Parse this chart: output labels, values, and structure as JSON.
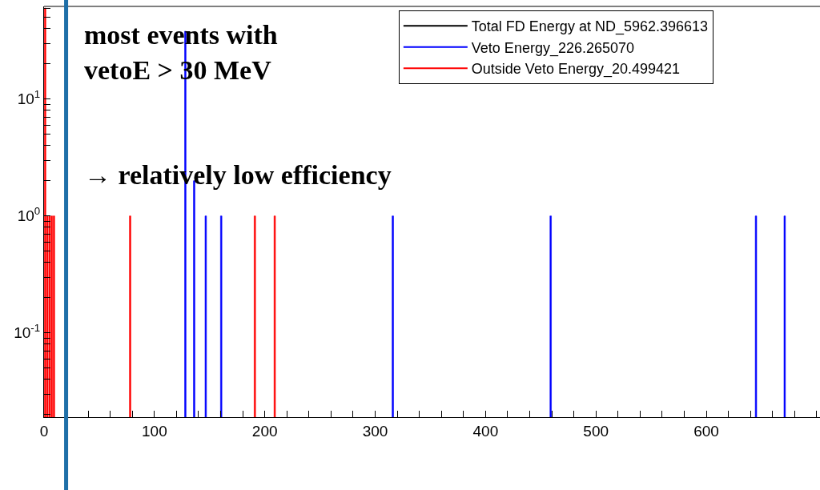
{
  "chart_data": {
    "type": "bar",
    "log": "y",
    "grid": false,
    "legend": "top right",
    "annotations": [
      "most events with\nvetoE > 30 MeV",
      "→ relatively low efficiency"
    ],
    "xlim": [
      0,
      703
    ],
    "xticks": [
      0,
      {
        "value": 20,
        "label": null
      },
      {
        "value": 40,
        "label": null
      },
      {
        "value": 60,
        "label": null
      },
      {
        "value": 80,
        "label": null
      },
      100,
      {
        "value": 120,
        "label": null
      },
      {
        "value": 140,
        "label": null
      },
      {
        "value": 160,
        "label": null
      },
      {
        "value": 180,
        "label": null
      },
      200,
      {
        "value": 220,
        "label": null
      },
      {
        "value": 240,
        "label": null
      },
      {
        "value": 260,
        "label": null
      },
      {
        "value": 280,
        "label": null
      },
      300,
      {
        "value": 320,
        "label": null
      },
      {
        "value": 340,
        "label": null
      },
      {
        "value": 360,
        "label": null
      },
      {
        "value": 380,
        "label": null
      },
      400,
      {
        "value": 420,
        "label": null
      },
      {
        "value": 440,
        "label": null
      },
      {
        "value": 460,
        "label": null
      },
      {
        "value": 480,
        "label": null
      },
      500,
      {
        "value": 520,
        "label": null
      },
      {
        "value": 540,
        "label": null
      },
      {
        "value": 560,
        "label": null
      },
      {
        "value": 580,
        "label": null
      },
      600,
      {
        "value": 620,
        "label": null
      },
      {
        "value": 640,
        "label": null
      },
      {
        "value": 660,
        "label": null
      },
      {
        "value": 680,
        "label": null
      },
      {
        "value": 700,
        "label": null
      }
    ],
    "ylim": [
      0.019,
      62
    ],
    "yticks": [
      {
        "value": 0.02,
        "label": null
      },
      {
        "value": 0.03,
        "label": null
      },
      {
        "value": 0.04,
        "label": null
      },
      {
        "value": 0.05,
        "label": null
      },
      {
        "value": 0.06,
        "label": null
      },
      {
        "value": 0.07,
        "label": null
      },
      {
        "value": 0.08,
        "label": null
      },
      {
        "value": 0.09,
        "label": null
      },
      {
        "value": 0.1,
        "label": "10$^{-1}$"
      },
      {
        "value": 0.2,
        "label": null
      },
      {
        "value": 0.3,
        "label": null
      },
      {
        "value": 0.4,
        "label": null
      },
      {
        "value": 0.5,
        "label": null
      },
      {
        "value": 0.6,
        "label": null
      },
      {
        "value": 0.7,
        "label": null
      },
      {
        "value": 0.8,
        "label": null
      },
      {
        "value": 0.9,
        "label": null
      },
      {
        "value": 1,
        "label": "10$^{0}$"
      },
      {
        "value": 2,
        "label": null
      },
      {
        "value": 3,
        "label": null
      },
      {
        "value": 4,
        "label": null
      },
      {
        "value": 5,
        "label": null
      },
      {
        "value": 6,
        "label": null
      },
      {
        "value": 7,
        "label": null
      },
      {
        "value": 8,
        "label": null
      },
      {
        "value": 9,
        "label": null
      },
      {
        "value": 10,
        "label": "10$^{1}$"
      },
      {
        "value": 20,
        "label": null
      },
      {
        "value": 30,
        "label": null
      },
      {
        "value": 40,
        "label": null
      },
      {
        "value": 50,
        "label": null
      },
      {
        "value": 60,
        "label": null
      }
    ],
    "ref_lines": [
      {
        "axis": "x",
        "value": 20,
        "label": null,
        "color": "#1f6fa8"
      }
    ],
    "series": [
      {
        "name": "Total FD Energy at ND_5962.396613",
        "color": "#000000"
      },
      {
        "name": "Veto Energy_226.265070",
        "color": "#0000ff",
        "x": [
          128,
          136,
          146.5,
          160.5,
          316,
          459,
          645,
          671
        ],
        "values": [
          38,
          2,
          1,
          1,
          1,
          1,
          1,
          1
        ]
      },
      {
        "name": "Outside Veto Energy_20.499421",
        "color": "#ff0000",
        "x": [
          1,
          3,
          5,
          7,
          9,
          78,
          191,
          209
        ],
        "values": [
          60,
          1,
          1,
          1,
          1,
          1,
          1,
          1
        ]
      }
    ]
  }
}
